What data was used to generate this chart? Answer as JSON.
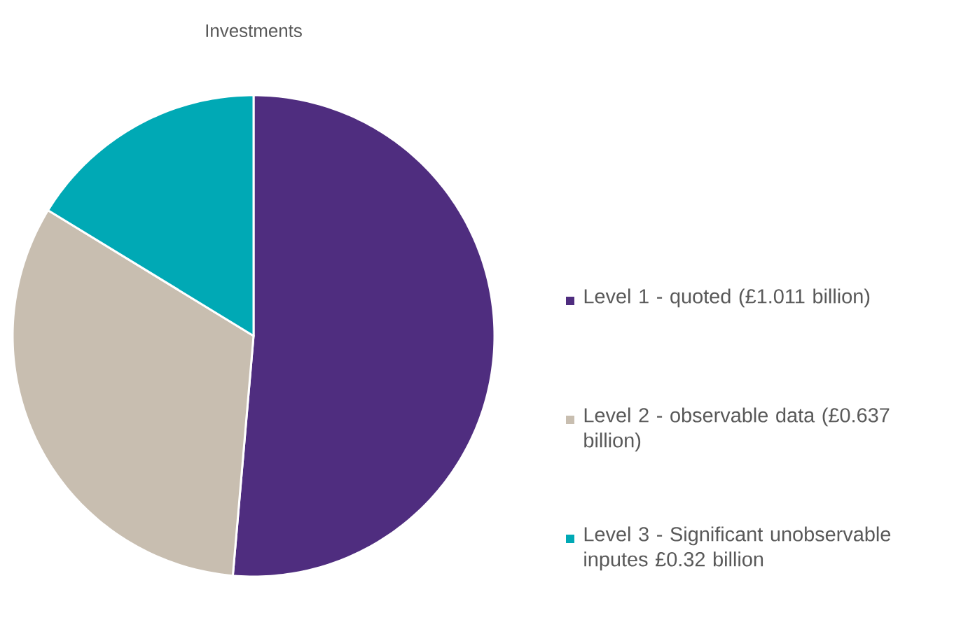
{
  "chart_data": {
    "type": "pie",
    "title": "Investments",
    "categories": [
      "Level 1 - quoted (£1.011 billion)",
      "Level 2 - observable data (£0.637 billion)",
      "Level 3 - Significant unobservable inputes £0.32 billion"
    ],
    "values": [
      1.011,
      0.637,
      0.32
    ],
    "colors": [
      "#4f2d7f",
      "#c8beb0",
      "#00a9b5"
    ],
    "legend": "right"
  }
}
